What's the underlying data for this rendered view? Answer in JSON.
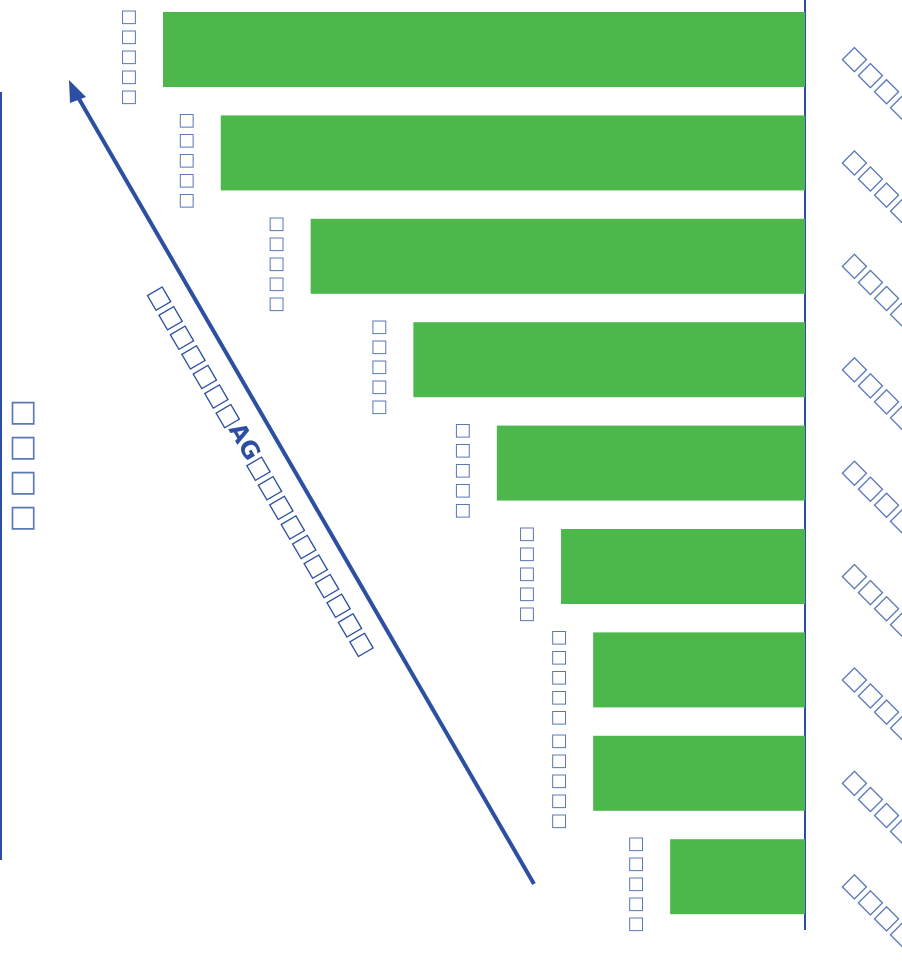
{
  "chart_data": {
    "type": "bar",
    "orientation": "horizontal",
    "categories": [
      "□□□□□",
      "□□□□□",
      "□□□□□",
      "□□□□□",
      "□□□□□",
      "□□□□□",
      "□□□□□",
      "□□□□□",
      "□□□□□"
    ],
    "values": [
      100,
      91,
      77,
      61,
      48,
      38,
      33,
      33,
      21
    ],
    "right_labels": [
      "□□□□",
      "□□□□",
      "□□□□",
      "□□□□",
      "□□□□",
      "□□□□",
      "□□□□",
      "□□□□",
      "□□□□"
    ],
    "xlim": [
      0,
      100
    ],
    "grid": false,
    "legend": "none",
    "bar_color": "#4cb84b",
    "axis_color": "#2d4fa3",
    "placeholder_color": "#5b79b8",
    "arrow_label": "□□□□□□□AG□□□□□□□□□□",
    "left_side_label": "□□□□"
  }
}
